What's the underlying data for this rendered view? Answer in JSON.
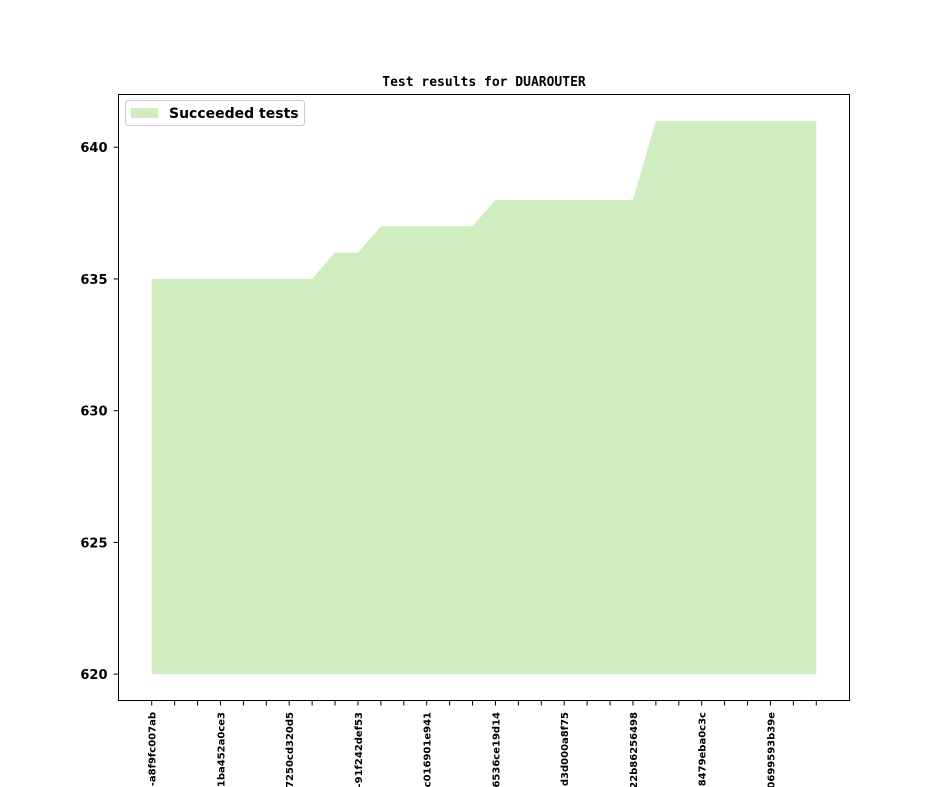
{
  "colors": {
    "fill": "#cfedbe",
    "axis": "#000000",
    "legend_border": "#cccccc"
  },
  "chart_data": {
    "type": "area",
    "title": "Test results for DUAROUTER",
    "xlabel": "",
    "ylabel": "",
    "x": [
      0,
      1,
      2,
      3,
      4,
      5,
      6,
      7,
      8,
      9,
      10,
      11,
      12,
      13,
      14,
      15,
      16,
      17,
      18,
      19,
      20,
      21,
      22,
      23,
      24,
      25,
      26,
      27,
      28,
      29
    ],
    "xtick_labels": [
      {
        "index": 0,
        "label": "-a8f9fc007ab"
      },
      {
        "index": 3,
        "label": "-1ba452a0ce3"
      },
      {
        "index": 6,
        "label": "7250cd320d5"
      },
      {
        "index": 9,
        "label": "-91f242def53"
      },
      {
        "index": 12,
        "label": "c016901e941"
      },
      {
        "index": 15,
        "label": "6536ce19d14"
      },
      {
        "index": 18,
        "label": "d3d000a8f75"
      },
      {
        "index": 21,
        "label": "22b86256498"
      },
      {
        "index": 24,
        "label": "-8479eba0c3c"
      },
      {
        "index": 27,
        "label": "0699593b39e"
      }
    ],
    "series": [
      {
        "name": "Succeeded tests",
        "baseline": 620,
        "values": [
          635,
          635,
          635,
          635,
          635,
          635,
          635,
          635,
          636,
          636,
          637,
          637,
          637,
          637,
          637,
          638,
          638,
          638,
          638,
          638,
          638,
          638,
          641,
          641,
          641,
          641,
          641,
          641,
          641,
          641
        ]
      }
    ],
    "yticks": [
      620,
      625,
      630,
      635,
      640
    ],
    "ylim": [
      619,
      642
    ],
    "xlim": [
      -1.45,
      30.45
    ],
    "grid": false,
    "legend": "top-left"
  }
}
